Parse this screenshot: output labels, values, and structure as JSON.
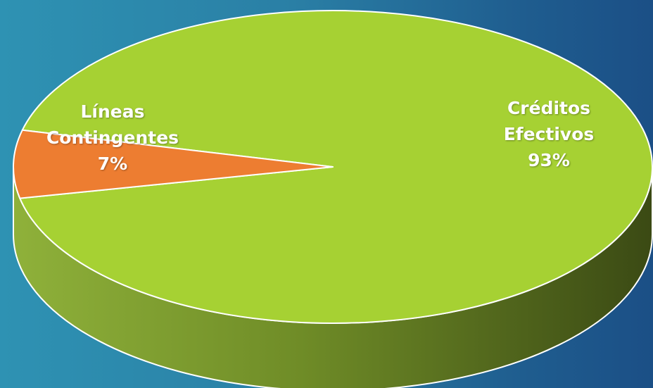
{
  "chart_data": {
    "type": "pie",
    "style": "3d",
    "slices": [
      {
        "label": "Líneas Contingentes",
        "value": 7,
        "display": "7%",
        "color": "#ed7d31"
      },
      {
        "label": "Créditos Efectivos",
        "value": 93,
        "display": "93%",
        "color": "#a6d133"
      }
    ],
    "title": "",
    "legend": "none"
  },
  "labels": {
    "contingentes": "Líneas\nContingentes\n7%",
    "efectivos": "Créditos\nEfectivos\n93%"
  }
}
